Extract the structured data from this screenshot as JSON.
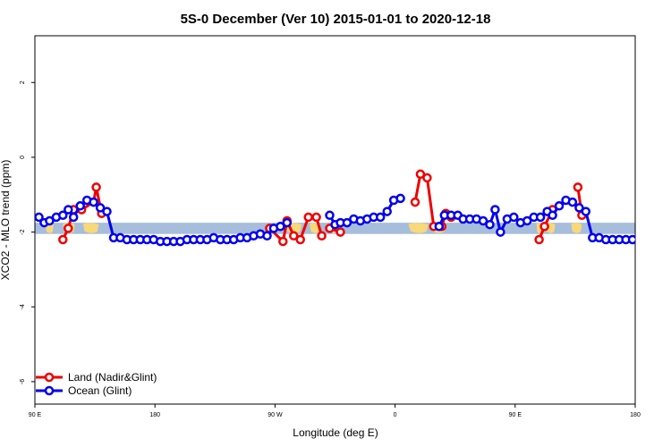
{
  "chart_data": {
    "type": "line",
    "title": "5S-0 December (Ver 10)   2015-01-01 to 2020-12-18",
    "xlabel": "Longitude (deg E)",
    "ylabel": "XCO2 - MLO trend (ppm)",
    "xlim": [
      90,
      540
    ],
    "ylim": [
      -6.6,
      3.25
    ],
    "x_ticks": [
      {
        "value": 90,
        "label": "90 E"
      },
      {
        "value": 180,
        "label": "180"
      },
      {
        "value": 270,
        "label": "90 W"
      },
      {
        "value": 360,
        "label": "0"
      },
      {
        "value": 450,
        "label": "90 E"
      },
      {
        "value": 540,
        "label": "180"
      }
    ],
    "y_ticks": [
      {
        "value": 2,
        "label": "2"
      },
      {
        "value": 0,
        "label": "0"
      },
      {
        "value": -2,
        "label": "-2"
      },
      {
        "value": -4,
        "label": "-4"
      },
      {
        "value": -6,
        "label": "-6"
      }
    ],
    "band": {
      "ymin": -2.05,
      "ymax": -1.75,
      "color": "#a6bddb"
    },
    "land_color": "#f8d878",
    "legend_position": "bottom-left",
    "series": [
      {
        "name": "Land (Nadir&Glint)",
        "color": "#ee0000",
        "segments": [
          [
            [
              111,
              -2.2
            ],
            [
              115,
              -1.9
            ],
            [
              119,
              -1.4
            ],
            [
              125,
              -1.4
            ],
            [
              134,
              -1.2
            ],
            [
              136,
              -0.8
            ],
            [
              140,
              -1.5
            ]
          ],
          [
            [
              266,
              -1.9
            ],
            [
              276,
              -2.25
            ],
            [
              279,
              -1.7
            ],
            [
              284,
              -2.1
            ],
            [
              289,
              -2.2
            ],
            [
              295,
              -1.6
            ],
            [
              301,
              -1.6
            ],
            [
              305,
              -2.1
            ]
          ],
          [
            [
              311,
              -1.9
            ],
            [
              319,
              -2.0
            ]
          ],
          [
            [
              375,
              -1.2
            ],
            [
              379,
              -0.45
            ],
            [
              384,
              -0.55
            ],
            [
              389,
              -1.85
            ]
          ],
          [
            [
              395,
              -1.85
            ],
            [
              398,
              -1.5
            ],
            [
              402,
              -1.6
            ]
          ],
          [
            [
              468,
              -2.2
            ],
            [
              472,
              -1.85
            ],
            [
              478,
              -1.4
            ]
          ],
          [
            [
              497,
              -0.8
            ],
            [
              500,
              -1.55
            ]
          ]
        ]
      },
      {
        "name": "Ocean (Glint)",
        "color": "#0000ee",
        "segments": [
          [
            [
              93,
              -1.6
            ],
            [
              97,
              -1.75
            ],
            [
              101,
              -1.7
            ],
            [
              106,
              -1.6
            ],
            [
              111,
              -1.55
            ],
            [
              115,
              -1.4
            ],
            [
              119,
              -1.6
            ],
            [
              124,
              -1.3
            ],
            [
              129,
              -1.15
            ],
            [
              134,
              -1.2
            ],
            [
              139,
              -1.35
            ],
            [
              144,
              -1.45
            ],
            [
              149,
              -2.15
            ],
            [
              154,
              -2.15
            ],
            [
              159,
              -2.2
            ],
            [
              164,
              -2.2
            ],
            [
              169,
              -2.2
            ],
            [
              174,
              -2.2
            ],
            [
              179,
              -2.2
            ],
            [
              184,
              -2.25
            ],
            [
              189,
              -2.25
            ],
            [
              194,
              -2.25
            ],
            [
              199,
              -2.25
            ],
            [
              204,
              -2.2
            ],
            [
              209,
              -2.2
            ],
            [
              214,
              -2.2
            ],
            [
              219,
              -2.2
            ],
            [
              224,
              -2.15
            ],
            [
              229,
              -2.2
            ],
            [
              234,
              -2.2
            ],
            [
              239,
              -2.2
            ],
            [
              244,
              -2.15
            ],
            [
              249,
              -2.15
            ],
            [
              254,
              -2.1
            ],
            [
              259,
              -2.05
            ],
            [
              264,
              -2.1
            ],
            [
              269,
              -1.9
            ],
            [
              274,
              -1.85
            ],
            [
              279,
              -1.75
            ]
          ],
          [
            [
              311,
              -1.55
            ],
            [
              315,
              -1.8
            ],
            [
              319,
              -1.75
            ],
            [
              324,
              -1.75
            ],
            [
              329,
              -1.65
            ],
            [
              334,
              -1.7
            ],
            [
              339,
              -1.65
            ],
            [
              344,
              -1.6
            ],
            [
              349,
              -1.6
            ],
            [
              354,
              -1.45
            ],
            [
              359,
              -1.15
            ],
            [
              364,
              -1.1
            ]
          ],
          [
            [
              393,
              -1.85
            ],
            [
              397,
              -1.55
            ],
            [
              402,
              -1.55
            ],
            [
              407,
              -1.55
            ],
            [
              411,
              -1.65
            ],
            [
              416,
              -1.65
            ],
            [
              421,
              -1.65
            ],
            [
              426,
              -1.7
            ],
            [
              431,
              -1.8
            ],
            [
              435,
              -1.4
            ],
            [
              439,
              -2.0
            ],
            [
              444,
              -1.65
            ],
            [
              449,
              -1.6
            ],
            [
              454,
              -1.75
            ],
            [
              459,
              -1.7
            ],
            [
              464,
              -1.6
            ],
            [
              469,
              -1.6
            ],
            [
              474,
              -1.45
            ],
            [
              478,
              -1.55
            ],
            [
              483,
              -1.3
            ],
            [
              488,
              -1.15
            ],
            [
              493,
              -1.2
            ],
            [
              498,
              -1.35
            ],
            [
              503,
              -1.45
            ],
            [
              508,
              -2.15
            ],
            [
              513,
              -2.15
            ],
            [
              518,
              -2.2
            ],
            [
              523,
              -2.2
            ],
            [
              528,
              -2.2
            ],
            [
              533,
              -2.2
            ],
            [
              538,
              -2.2
            ]
          ]
        ]
      }
    ]
  }
}
